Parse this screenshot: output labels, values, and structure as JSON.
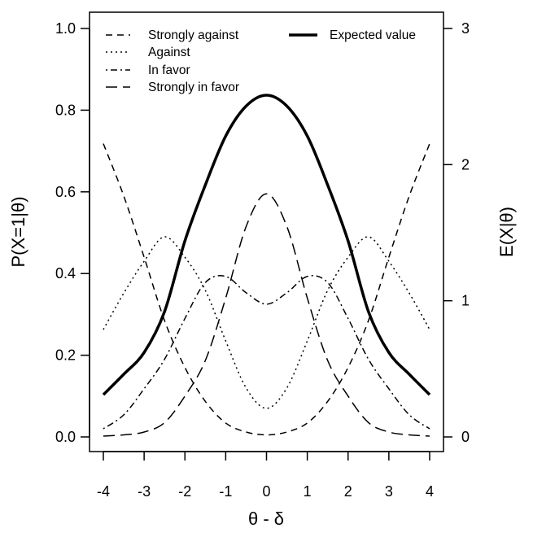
{
  "chart_data": {
    "type": "line",
    "xlabel": "θ - δ",
    "ylabel": "P(X=1|θ)",
    "y2label": "E(X|θ)",
    "xlim": [
      -4,
      4
    ],
    "ylim": [
      0,
      1
    ],
    "y2lim": [
      0,
      3
    ],
    "xticks": [
      "-4",
      "-3",
      "-2",
      "-1",
      "0",
      "1",
      "2",
      "3",
      "4"
    ],
    "yticks": [
      "0.0",
      "0.2",
      "0.4",
      "0.6",
      "0.8",
      "1.0"
    ],
    "y2ticks": [
      "0",
      "1",
      "2",
      "3"
    ],
    "grid": false,
    "legend_placement": "top",
    "x": [
      -4,
      -3.5,
      -3,
      -2.5,
      -2,
      -1.5,
      -1,
      -0.5,
      0,
      0.5,
      1,
      1.5,
      2,
      2.5,
      3,
      3.5,
      4
    ],
    "series": [
      {
        "name": "Strongly against",
        "axis": "left",
        "style": "dashed",
        "values": [
          0.718,
          0.59,
          0.44,
          0.285,
          0.17,
          0.087,
          0.034,
          0.012,
          0.005,
          0.012,
          0.034,
          0.087,
          0.17,
          0.285,
          0.44,
          0.59,
          0.718
        ]
      },
      {
        "name": "Against",
        "axis": "left",
        "style": "dotted",
        "values": [
          0.263,
          0.352,
          0.43,
          0.49,
          0.44,
          0.359,
          0.235,
          0.12,
          0.07,
          0.12,
          0.235,
          0.359,
          0.44,
          0.49,
          0.43,
          0.352,
          0.263
        ]
      },
      {
        "name": "In favor",
        "axis": "left",
        "style": "dotdash",
        "values": [
          0.02,
          0.054,
          0.118,
          0.19,
          0.29,
          0.378,
          0.393,
          0.353,
          0.325,
          0.353,
          0.393,
          0.378,
          0.29,
          0.19,
          0.118,
          0.054,
          0.02
        ]
      },
      {
        "name": "Strongly in favor",
        "axis": "left",
        "style": "longdash",
        "values": [
          0.002,
          0.005,
          0.012,
          0.035,
          0.1,
          0.187,
          0.34,
          0.515,
          0.595,
          0.515,
          0.34,
          0.187,
          0.1,
          0.035,
          0.012,
          0.005,
          0.002
        ]
      },
      {
        "name": "Expected value",
        "axis": "right",
        "style": "solid-thick",
        "values": [
          0.31,
          0.46,
          0.62,
          0.92,
          1.44,
          1.85,
          2.21,
          2.43,
          2.51,
          2.43,
          2.21,
          1.85,
          1.44,
          0.92,
          0.62,
          0.46,
          0.31
        ]
      }
    ]
  }
}
